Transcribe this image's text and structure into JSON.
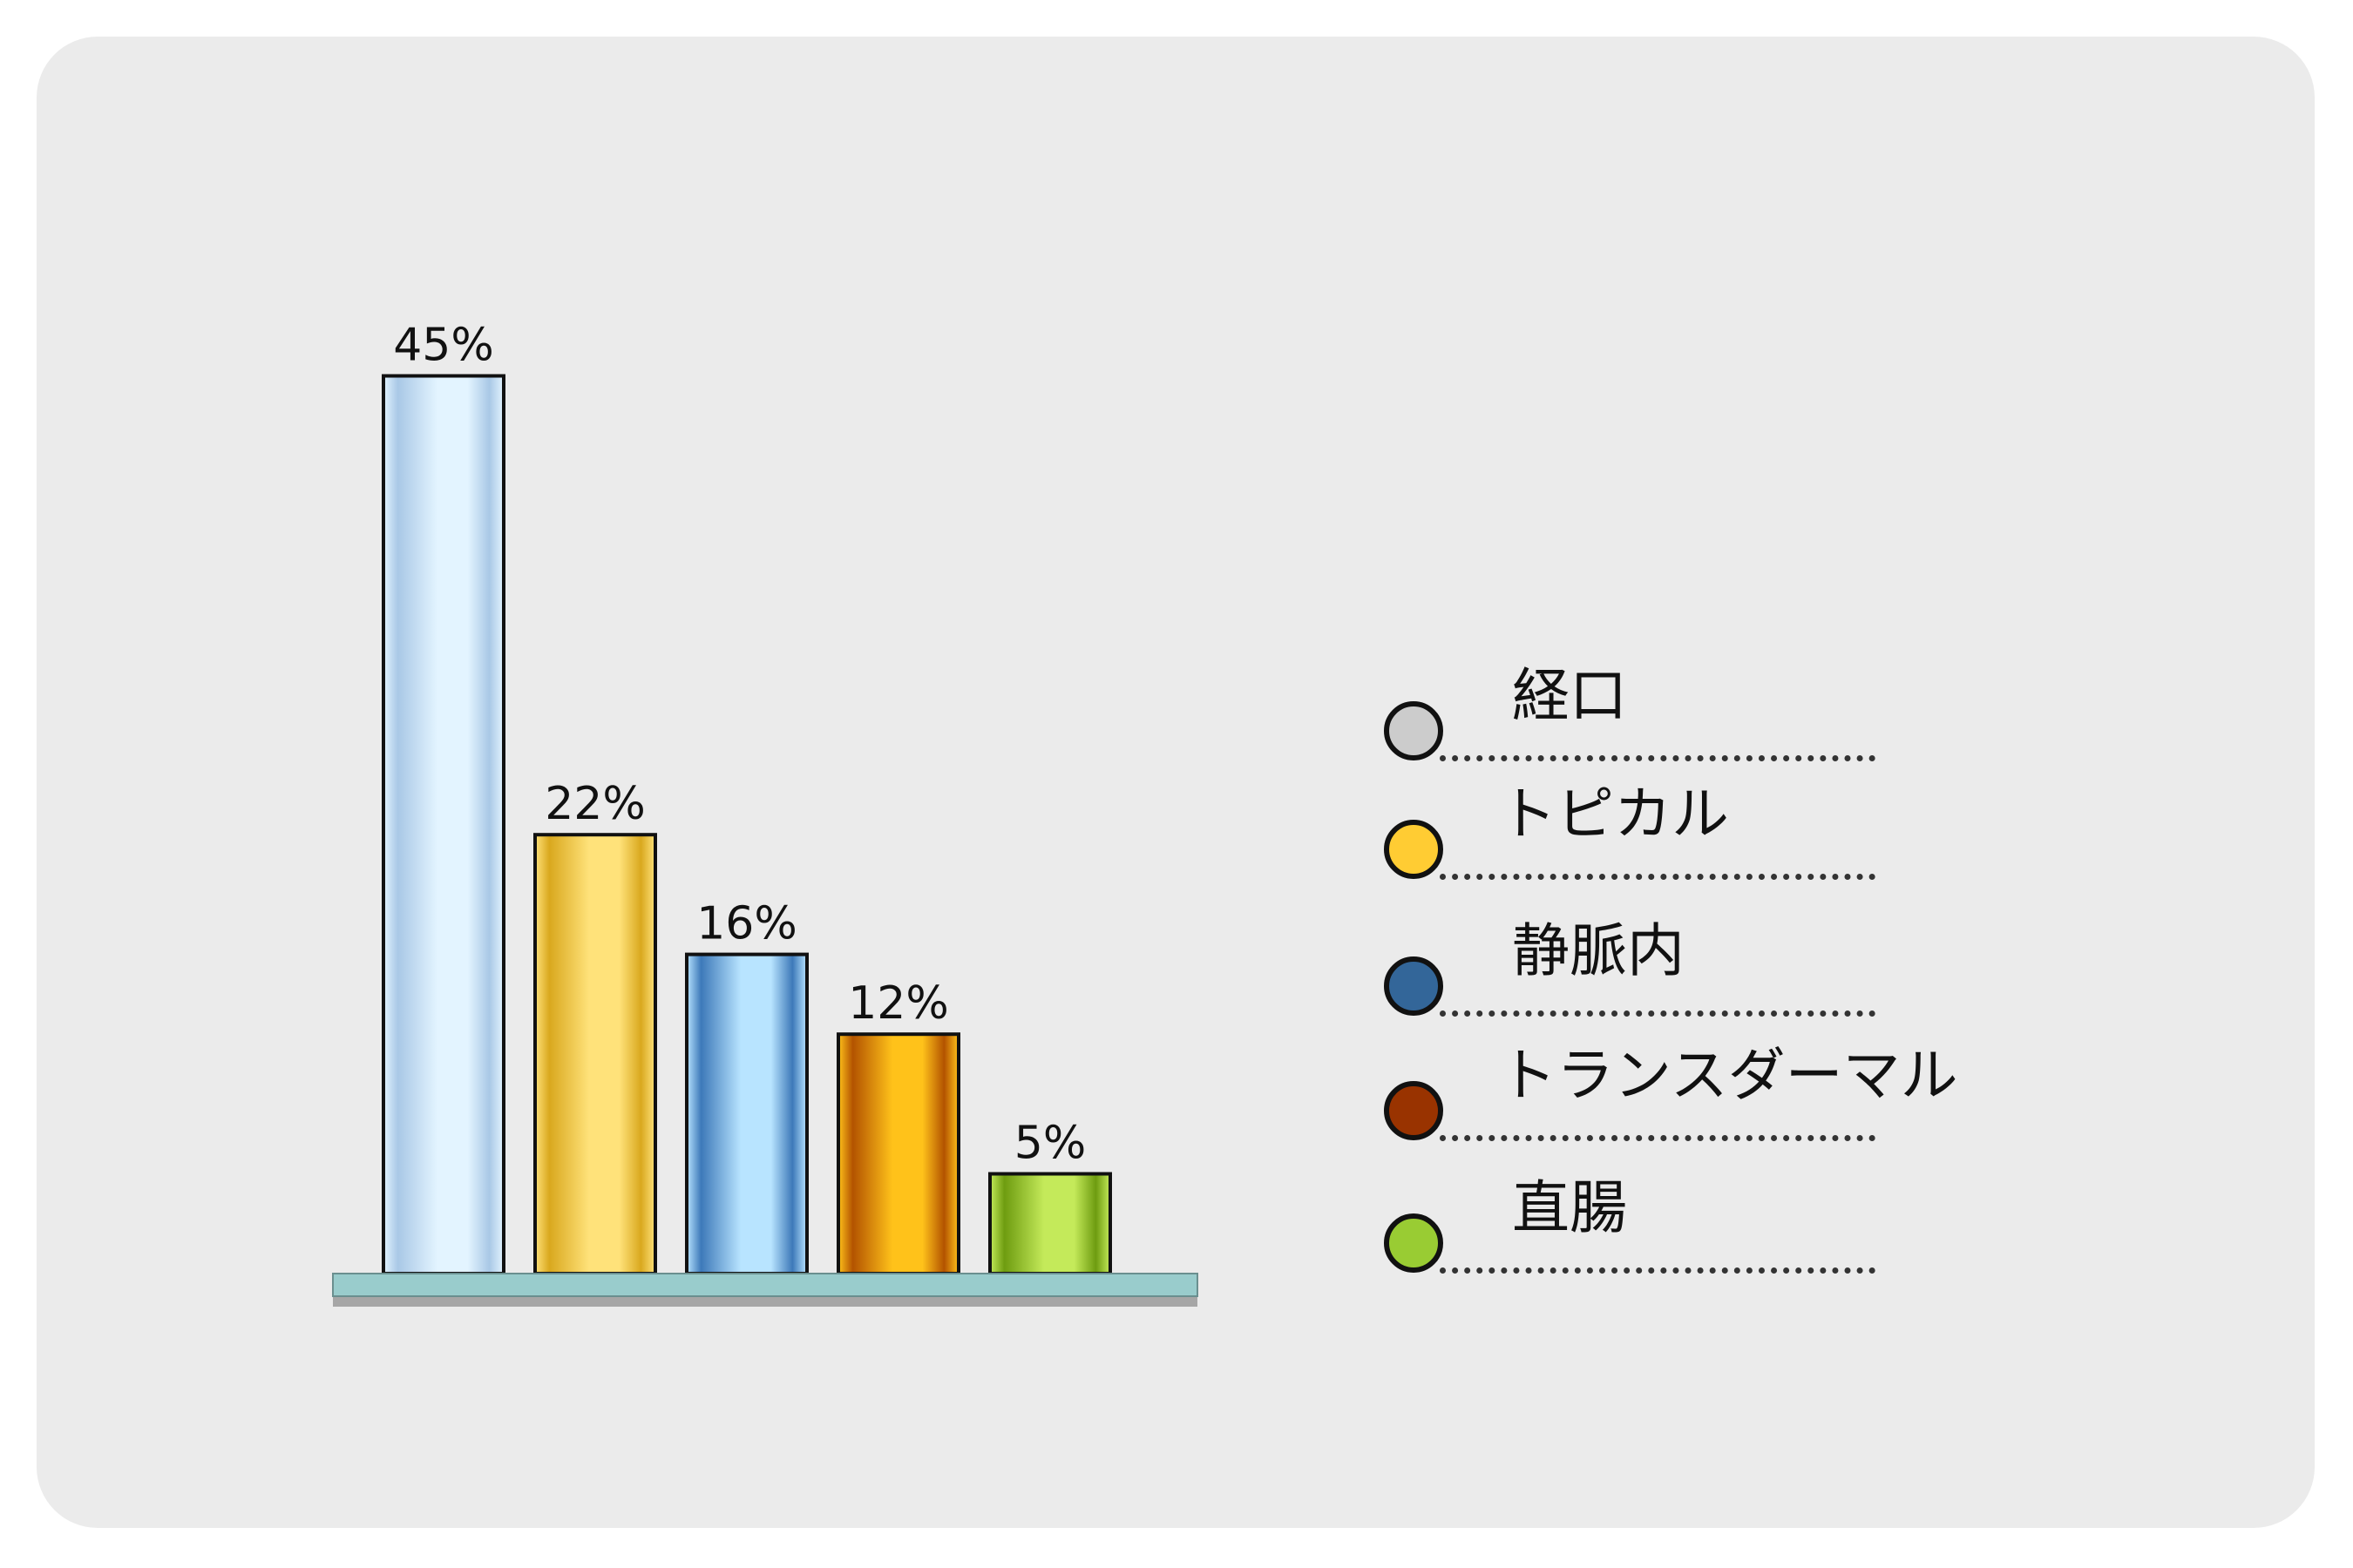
{
  "chart_data": {
    "type": "bar",
    "title": "",
    "xlabel": "",
    "ylabel": "",
    "categories": [
      "経口",
      "トピカル",
      "静脈内",
      "トランスダーマル",
      "直腸"
    ],
    "values": [
      45,
      22,
      16,
      12,
      5
    ],
    "value_labels": [
      "45%",
      "22%",
      "16%",
      "12%",
      "5%"
    ],
    "ylim": [
      0,
      50
    ],
    "grid": false,
    "legend_position": "right",
    "colors": {
      "経口": [
        "#a9c8e6",
        "#e3f4ff"
      ],
      "トピカル": [
        "#d9a81e",
        "#ffe27a"
      ],
      "静脈内": [
        "#3d79b9",
        "#b8e4ff"
      ],
      "トランスダーマル": [
        "#b35300",
        "#ffc21a"
      ],
      "直腸": [
        "#6e9c10",
        "#c4ea5a"
      ]
    }
  },
  "legend": {
    "items": [
      {
        "label": "経口",
        "swatch_color": "#cccccc"
      },
      {
        "label": "トピカル",
        "swatch_color": "#ffcc33"
      },
      {
        "label": "静脈内",
        "swatch_color": "#336699"
      },
      {
        "label": "トランスダーマル",
        "swatch_color": "#993300"
      },
      {
        "label": "直腸",
        "swatch_color": "#99cc33"
      }
    ]
  },
  "colors": {
    "panel_background": "#ebebeb",
    "baseline_fill": "#99cccc",
    "baseline_shadow": "#a6a6a6",
    "outline": "#111111"
  }
}
